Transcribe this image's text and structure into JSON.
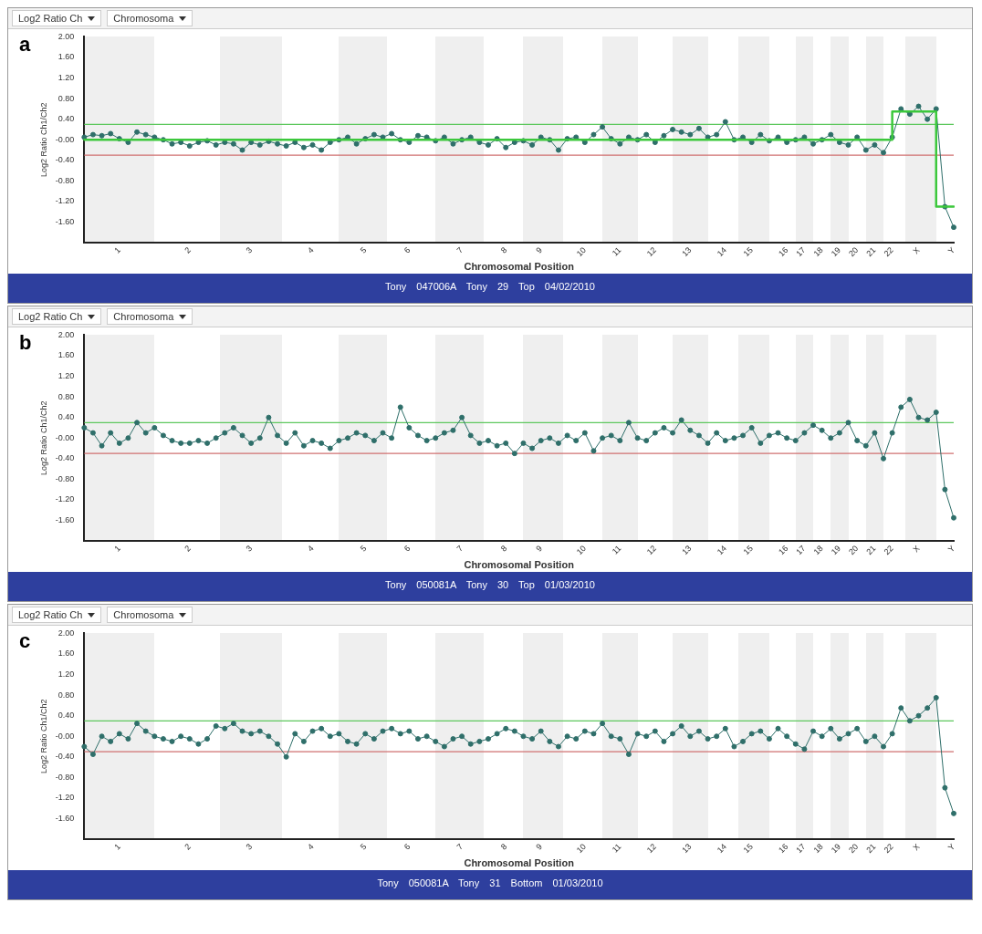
{
  "chart_data": [
    {
      "type": "line",
      "title": "a",
      "xlabel": "Chromosomal Position",
      "ylabel": "Log2 Ratio Ch1/Ch2",
      "grid": false,
      "annotations": [
        "Log2 Ratio Ch",
        "Chromosoma",
        "Tony 047006A Tony 29 Top 04/02/2010"
      ],
      "ylim": [
        -2,
        2
      ],
      "yticks": [
        {
          "value": 2,
          "label": "2.00"
        },
        {
          "value": 1.6,
          "label": "1.60"
        },
        {
          "value": 1.2,
          "label": "1.20"
        },
        {
          "value": 0.8,
          "label": "0.80"
        },
        {
          "value": 0.4,
          "label": "0.40"
        },
        {
          "value": 0,
          "label": "-0.00"
        },
        {
          "value": -0.4,
          "label": "-0.40"
        },
        {
          "value": -0.8,
          "label": "-0.80"
        },
        {
          "value": -1.2,
          "label": "-1.20"
        },
        {
          "value": -1.6,
          "label": "-1.60"
        }
      ],
      "ref_lines": [
        {
          "axis": "y",
          "value": 0.3,
          "color": "#5ec85e"
        },
        {
          "axis": "y",
          "value": -0.3,
          "color": "#d07070"
        }
      ],
      "categories": [
        null,
        null,
        null,
        null,
        "1",
        null,
        null,
        null,
        null,
        null,
        null,
        null,
        "2",
        null,
        null,
        null,
        null,
        null,
        null,
        "3",
        null,
        null,
        null,
        null,
        null,
        null,
        "4",
        null,
        null,
        null,
        null,
        null,
        "5",
        null,
        null,
        null,
        null,
        "6",
        null,
        null,
        null,
        null,
        null,
        "7",
        null,
        null,
        null,
        null,
        "8",
        null,
        null,
        null,
        "9",
        null,
        null,
        null,
        null,
        "10",
        null,
        null,
        null,
        "11",
        null,
        null,
        null,
        "12",
        null,
        null,
        null,
        "13",
        null,
        null,
        null,
        "14",
        null,
        null,
        "15",
        null,
        null,
        null,
        "16",
        null,
        "17",
        null,
        "18",
        null,
        "19",
        null,
        "20",
        null,
        "21",
        null,
        "22",
        null,
        null,
        "X",
        null,
        null,
        null,
        "Y"
      ],
      "series": [
        {
          "color": "#2f6f6a",
          "marker": "circle",
          "values": [
            0.05,
            0.1,
            0.08,
            0.12,
            0.02,
            -0.05,
            0.15,
            0.1,
            0.05,
            0.0,
            -0.08,
            -0.05,
            -0.12,
            -0.05,
            -0.02,
            -0.1,
            -0.05,
            -0.08,
            -0.2,
            -0.05,
            -0.1,
            -0.03,
            -0.08,
            -0.12,
            -0.05,
            -0.15,
            -0.1,
            -0.2,
            -0.05,
            0.0,
            0.05,
            -0.08,
            0.02,
            0.1,
            0.05,
            0.12,
            0.0,
            -0.05,
            0.08,
            0.05,
            -0.02,
            0.05,
            -0.08,
            0.0,
            0.05,
            -0.05,
            -0.1,
            0.02,
            -0.15,
            -0.05,
            -0.02,
            -0.1,
            0.05,
            0.0,
            -0.2,
            0.02,
            0.05,
            -0.05,
            0.1,
            0.25,
            0.02,
            -0.08,
            0.05,
            0.0,
            0.1,
            -0.05,
            0.08,
            0.2,
            0.15,
            0.1,
            0.22,
            0.05,
            0.1,
            0.35,
            0.0,
            0.05,
            -0.05,
            0.1,
            -0.02,
            0.05,
            -0.05,
            0.0,
            0.05,
            -0.08,
            0.0,
            0.1,
            -0.05,
            -0.1,
            0.05,
            -0.2,
            -0.1,
            -0.25,
            0.05,
            0.6,
            0.5,
            0.65,
            0.4,
            0.6,
            -1.3,
            -1.7
          ]
        },
        {
          "type": "step",
          "color": "#3cc83c",
          "marker": "none",
          "values": [
            0,
            0,
            0,
            0,
            0,
            0,
            0,
            0,
            0,
            0,
            0,
            0,
            0,
            0,
            0,
            0,
            0,
            0,
            0,
            0,
            0,
            0,
            0,
            0,
            0,
            0,
            0,
            0,
            0,
            0,
            0,
            0,
            0,
            0,
            0,
            0,
            0,
            0,
            0,
            0,
            0,
            0,
            0,
            0,
            0,
            0,
            0,
            0,
            0,
            0,
            0,
            0,
            0,
            0,
            0,
            0,
            0,
            0,
            0,
            0,
            0,
            0,
            0,
            0,
            0,
            0,
            0,
            0,
            0,
            0,
            0,
            0,
            0,
            0,
            0,
            0,
            0,
            0,
            0,
            0,
            0,
            0,
            0,
            0,
            0,
            0,
            0,
            0,
            0,
            0,
            0,
            0,
            0,
            0.55,
            0.55,
            0.55,
            0.55,
            0.55,
            -1.3,
            -1.3
          ]
        }
      ]
    },
    {
      "type": "line",
      "title": "b",
      "xlabel": "Chromosomal Position",
      "ylabel": "Log2 Ratio Ch1/Ch2",
      "marker": "circle",
      "grid": false,
      "annotations": [
        "Log2 Ratio Ch",
        "Chromosoma",
        "Tony 050081A Tony 30 Top 01/03/2010"
      ],
      "ylim": [
        -2,
        2
      ],
      "yticks": [
        {
          "value": 2,
          "label": "2.00"
        },
        {
          "value": 1.6,
          "label": "1.60"
        },
        {
          "value": 1.2,
          "label": "1.20"
        },
        {
          "value": 0.8,
          "label": "0.80"
        },
        {
          "value": 0.4,
          "label": "0.40"
        },
        {
          "value": 0,
          "label": "-0.00"
        },
        {
          "value": -0.4,
          "label": "-0.40"
        },
        {
          "value": -0.8,
          "label": "-0.80"
        },
        {
          "value": -1.2,
          "label": "-1.20"
        },
        {
          "value": -1.6,
          "label": "-1.60"
        }
      ],
      "ref_lines": [
        {
          "axis": "y",
          "value": 0.3,
          "color": "#5ec85e"
        },
        {
          "axis": "y",
          "value": -0.3,
          "color": "#d07070"
        }
      ],
      "categories": [
        null,
        null,
        null,
        null,
        "1",
        null,
        null,
        null,
        null,
        null,
        null,
        null,
        "2",
        null,
        null,
        null,
        null,
        null,
        null,
        "3",
        null,
        null,
        null,
        null,
        null,
        null,
        "4",
        null,
        null,
        null,
        null,
        null,
        "5",
        null,
        null,
        null,
        null,
        "6",
        null,
        null,
        null,
        null,
        null,
        "7",
        null,
        null,
        null,
        null,
        "8",
        null,
        null,
        null,
        "9",
        null,
        null,
        null,
        null,
        "10",
        null,
        null,
        null,
        "11",
        null,
        null,
        null,
        "12",
        null,
        null,
        null,
        "13",
        null,
        null,
        null,
        "14",
        null,
        null,
        "15",
        null,
        null,
        null,
        "16",
        null,
        "17",
        null,
        "18",
        null,
        "19",
        null,
        "20",
        null,
        "21",
        null,
        "22",
        null,
        null,
        "X",
        null,
        null,
        null,
        "Y"
      ],
      "series": [
        {
          "color": "#2f6f6a",
          "values": [
            0.2,
            0.1,
            -0.15,
            0.1,
            -0.1,
            0.0,
            0.3,
            0.1,
            0.2,
            0.05,
            -0.05,
            -0.1,
            -0.1,
            -0.05,
            -0.1,
            0.0,
            0.1,
            0.2,
            0.05,
            -0.1,
            0.0,
            0.4,
            0.05,
            -0.1,
            0.1,
            -0.15,
            -0.05,
            -0.1,
            -0.2,
            -0.05,
            0.0,
            0.1,
            0.05,
            -0.05,
            0.1,
            0.0,
            0.6,
            0.2,
            0.05,
            -0.05,
            0.0,
            0.1,
            0.15,
            0.4,
            0.05,
            -0.1,
            -0.05,
            -0.15,
            -0.1,
            -0.3,
            -0.1,
            -0.2,
            -0.05,
            0.0,
            -0.1,
            0.05,
            -0.05,
            0.1,
            -0.25,
            0.0,
            0.05,
            -0.05,
            0.3,
            0.0,
            -0.05,
            0.1,
            0.2,
            0.1,
            0.35,
            0.15,
            0.05,
            -0.1,
            0.1,
            -0.05,
            0.0,
            0.05,
            0.2,
            -0.1,
            0.05,
            0.1,
            0.0,
            -0.05,
            0.1,
            0.25,
            0.15,
            0.0,
            0.1,
            0.3,
            -0.05,
            -0.15,
            0.1,
            -0.4,
            0.1,
            0.6,
            0.75,
            0.4,
            0.35,
            0.5,
            -1.0,
            -1.55
          ]
        }
      ]
    },
    {
      "type": "line",
      "title": "c",
      "xlabel": "Chromosomal Position",
      "ylabel": "Log2 Ratio Ch1/Ch2",
      "marker": "circle",
      "grid": false,
      "annotations": [
        "Log2 Ratio Ch",
        "Chromosoma",
        "Tony 050081A Tony 31 Bottom 01/03/2010"
      ],
      "ylim": [
        -2,
        2
      ],
      "yticks": [
        {
          "value": 2,
          "label": "2.00"
        },
        {
          "value": 1.6,
          "label": "1.60"
        },
        {
          "value": 1.2,
          "label": "1.20"
        },
        {
          "value": 0.8,
          "label": "0.80"
        },
        {
          "value": 0.4,
          "label": "0.40"
        },
        {
          "value": 0,
          "label": "-0.00"
        },
        {
          "value": -0.4,
          "label": "-0.40"
        },
        {
          "value": -0.8,
          "label": "-0.80"
        },
        {
          "value": -1.2,
          "label": "-1.20"
        },
        {
          "value": -1.6,
          "label": "-1.60"
        }
      ],
      "ref_lines": [
        {
          "axis": "y",
          "value": 0.3,
          "color": "#5ec85e"
        },
        {
          "axis": "y",
          "value": -0.3,
          "color": "#d07070"
        }
      ],
      "categories": [
        null,
        null,
        null,
        null,
        "1",
        null,
        null,
        null,
        null,
        null,
        null,
        null,
        "2",
        null,
        null,
        null,
        null,
        null,
        null,
        "3",
        null,
        null,
        null,
        null,
        null,
        null,
        "4",
        null,
        null,
        null,
        null,
        null,
        "5",
        null,
        null,
        null,
        null,
        "6",
        null,
        null,
        null,
        null,
        null,
        "7",
        null,
        null,
        null,
        null,
        "8",
        null,
        null,
        null,
        "9",
        null,
        null,
        null,
        null,
        "10",
        null,
        null,
        null,
        "11",
        null,
        null,
        null,
        "12",
        null,
        null,
        null,
        "13",
        null,
        null,
        null,
        "14",
        null,
        null,
        "15",
        null,
        null,
        null,
        "16",
        null,
        "17",
        null,
        "18",
        null,
        "19",
        null,
        "20",
        null,
        "21",
        null,
        "22",
        null,
        null,
        "X",
        null,
        null,
        null,
        "Y"
      ],
      "series": [
        {
          "color": "#2f6f6a",
          "values": [
            -0.2,
            -0.35,
            0.0,
            -0.1,
            0.05,
            -0.05,
            0.25,
            0.1,
            0.0,
            -0.05,
            -0.1,
            0.0,
            -0.05,
            -0.15,
            -0.05,
            0.2,
            0.15,
            0.25,
            0.1,
            0.05,
            0.1,
            0.0,
            -0.15,
            -0.4,
            0.05,
            -0.1,
            0.1,
            0.15,
            0.0,
            0.05,
            -0.1,
            -0.15,
            0.05,
            -0.05,
            0.1,
            0.15,
            0.05,
            0.1,
            -0.05,
            0.0,
            -0.1,
            -0.2,
            -0.05,
            0.0,
            -0.15,
            -0.1,
            -0.05,
            0.05,
            0.15,
            0.1,
            0.0,
            -0.05,
            0.1,
            -0.1,
            -0.2,
            0.0,
            -0.05,
            0.1,
            0.05,
            0.25,
            0.0,
            -0.05,
            -0.35,
            0.05,
            0.0,
            0.1,
            -0.1,
            0.05,
            0.2,
            0.0,
            0.1,
            -0.05,
            0.0,
            0.15,
            -0.2,
            -0.1,
            0.05,
            0.1,
            -0.05,
            0.15,
            0.0,
            -0.15,
            -0.25,
            0.1,
            0.0,
            0.15,
            -0.05,
            0.05,
            0.15,
            -0.1,
            0.0,
            -0.2,
            0.05,
            0.55,
            0.3,
            0.4,
            0.55,
            0.75,
            -1.0,
            -1.5
          ]
        }
      ]
    }
  ]
}
